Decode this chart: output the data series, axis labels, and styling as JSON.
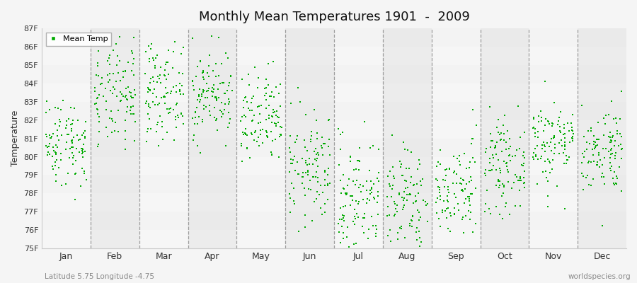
{
  "title": "Monthly Mean Temperatures 1901  -  2009",
  "ylabel": "Temperature",
  "xlabel_bottom_left": "Latitude 5.75 Longitude -4.75",
  "xlabel_bottom_right": "worldspecies.org",
  "legend_label": "Mean Temp",
  "marker_color": "#00aa00",
  "background_color": "#f5f5f5",
  "band_color_light": "#f9f9f9",
  "band_color_dark": "#ebebeb",
  "ylim": [
    75,
    87
  ],
  "yticks": [
    75,
    76,
    77,
    78,
    79,
    80,
    81,
    82,
    83,
    84,
    85,
    86,
    87
  ],
  "ytick_labels": [
    "75F",
    "76F",
    "77F",
    "78F",
    "79F",
    "80F",
    "81F",
    "82F",
    "83F",
    "84F",
    "85F",
    "86F",
    "87F"
  ],
  "months": [
    "Jan",
    "Feb",
    "Mar",
    "Apr",
    "May",
    "Jun",
    "Jul",
    "Aug",
    "Sep",
    "Oct",
    "Nov",
    "Dec"
  ],
  "monthly_means_F": [
    80.8,
    83.2,
    83.6,
    83.4,
    81.9,
    79.3,
    77.8,
    77.5,
    78.1,
    79.5,
    80.8,
    80.4
  ],
  "monthly_std_F": [
    1.2,
    1.4,
    1.3,
    1.2,
    1.3,
    1.5,
    1.6,
    1.6,
    1.4,
    1.2,
    1.2,
    1.2
  ],
  "n_years": 109,
  "seed": 42
}
